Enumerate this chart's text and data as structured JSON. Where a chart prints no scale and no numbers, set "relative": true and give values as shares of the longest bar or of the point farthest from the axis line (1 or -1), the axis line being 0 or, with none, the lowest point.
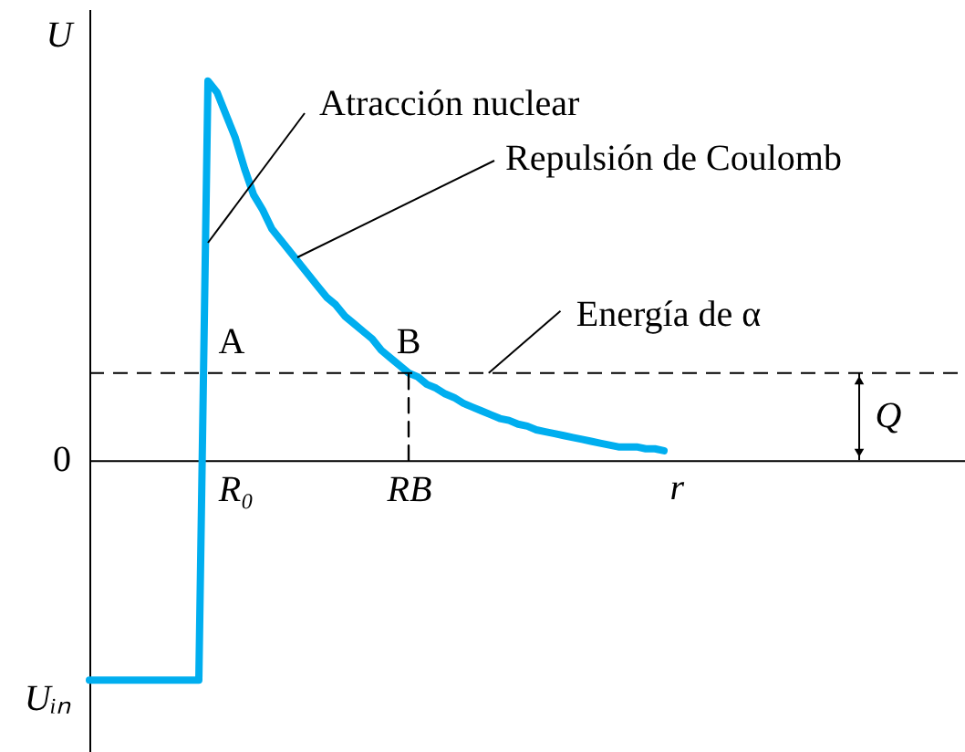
{
  "chart_data": {
    "type": "line",
    "xlabel": "r",
    "ylabel": "U",
    "relative": true,
    "categories": [
      null,
      null,
      null,
      null,
      null,
      null,
      null,
      null,
      null,
      null,
      null,
      null,
      null,
      null,
      null,
      null,
      "R₀",
      null,
      null,
      null,
      null,
      null,
      null,
      null,
      null,
      null,
      null,
      null,
      null,
      null,
      null,
      null,
      null,
      null,
      null,
      "RB",
      null,
      null,
      null,
      null,
      null,
      null,
      null,
      null,
      null,
      null,
      null,
      null,
      null,
      null,
      null,
      null,
      null,
      null,
      null,
      null,
      null,
      null,
      null,
      null,
      null,
      null,
      null,
      null,
      null,
      null,
      null,
      null,
      null,
      null,
      null,
      null,
      null,
      null,
      null,
      null,
      null,
      null,
      null,
      null,
      null,
      null,
      null,
      null,
      null,
      null,
      null,
      null,
      null,
      null,
      null,
      null,
      null,
      null,
      null,
      null,
      null
    ],
    "series": [
      {
        "color": "#00aeef",
        "values": [
          -0.58,
          -0.58,
          -0.58,
          -0.58,
          -0.58,
          -0.58,
          -0.58,
          -0.58,
          -0.58,
          -0.58,
          -0.58,
          -0.58,
          -0.58,
          1.0,
          0.97,
          0.91,
          0.85,
          0.77,
          0.7,
          0.66,
          0.61,
          0.58,
          0.55,
          0.52,
          0.49,
          0.46,
          0.43,
          0.41,
          0.38,
          0.36,
          0.34,
          0.32,
          0.29,
          0.27,
          0.25,
          0.23,
          0.22,
          0.2,
          0.19,
          0.175,
          0.165,
          0.15,
          0.14,
          0.13,
          0.12,
          0.11,
          0.105,
          0.095,
          0.09,
          0.08,
          0.075,
          0.07,
          0.065,
          0.06,
          0.055,
          0.05,
          0.045,
          0.04,
          0.035,
          0.035,
          0.035,
          0.03,
          0.03,
          0.025,
          null,
          null,
          null,
          null,
          null,
          null,
          null,
          null,
          null,
          null,
          null,
          null,
          null,
          null,
          null,
          null,
          null,
          null,
          null,
          null,
          null,
          null,
          null,
          null,
          null,
          null,
          null,
          null,
          null,
          null,
          null,
          null,
          null
        ]
      },
      {
        "type": "line",
        "color": "#000000",
        "line_style": "dashed",
        "x": [
          "RB",
          "RB"
        ],
        "values": [
          0,
          0.23
        ]
      }
    ],
    "ref_lines": [
      {
        "axis": "y",
        "value": 0.23,
        "label": "Energía de α",
        "color": "#000000",
        "line_style": "dashed"
      }
    ],
    "annotations": [
      "Atracción nuclear",
      "Repulsión de Coulomb",
      {
        "text": "A",
        "x": "R₀",
        "y": 0.23
      },
      {
        "text": "B",
        "x": "RB",
        "y": 0.23
      },
      "Q",
      "0",
      "Uᵢₙ"
    ]
  }
}
